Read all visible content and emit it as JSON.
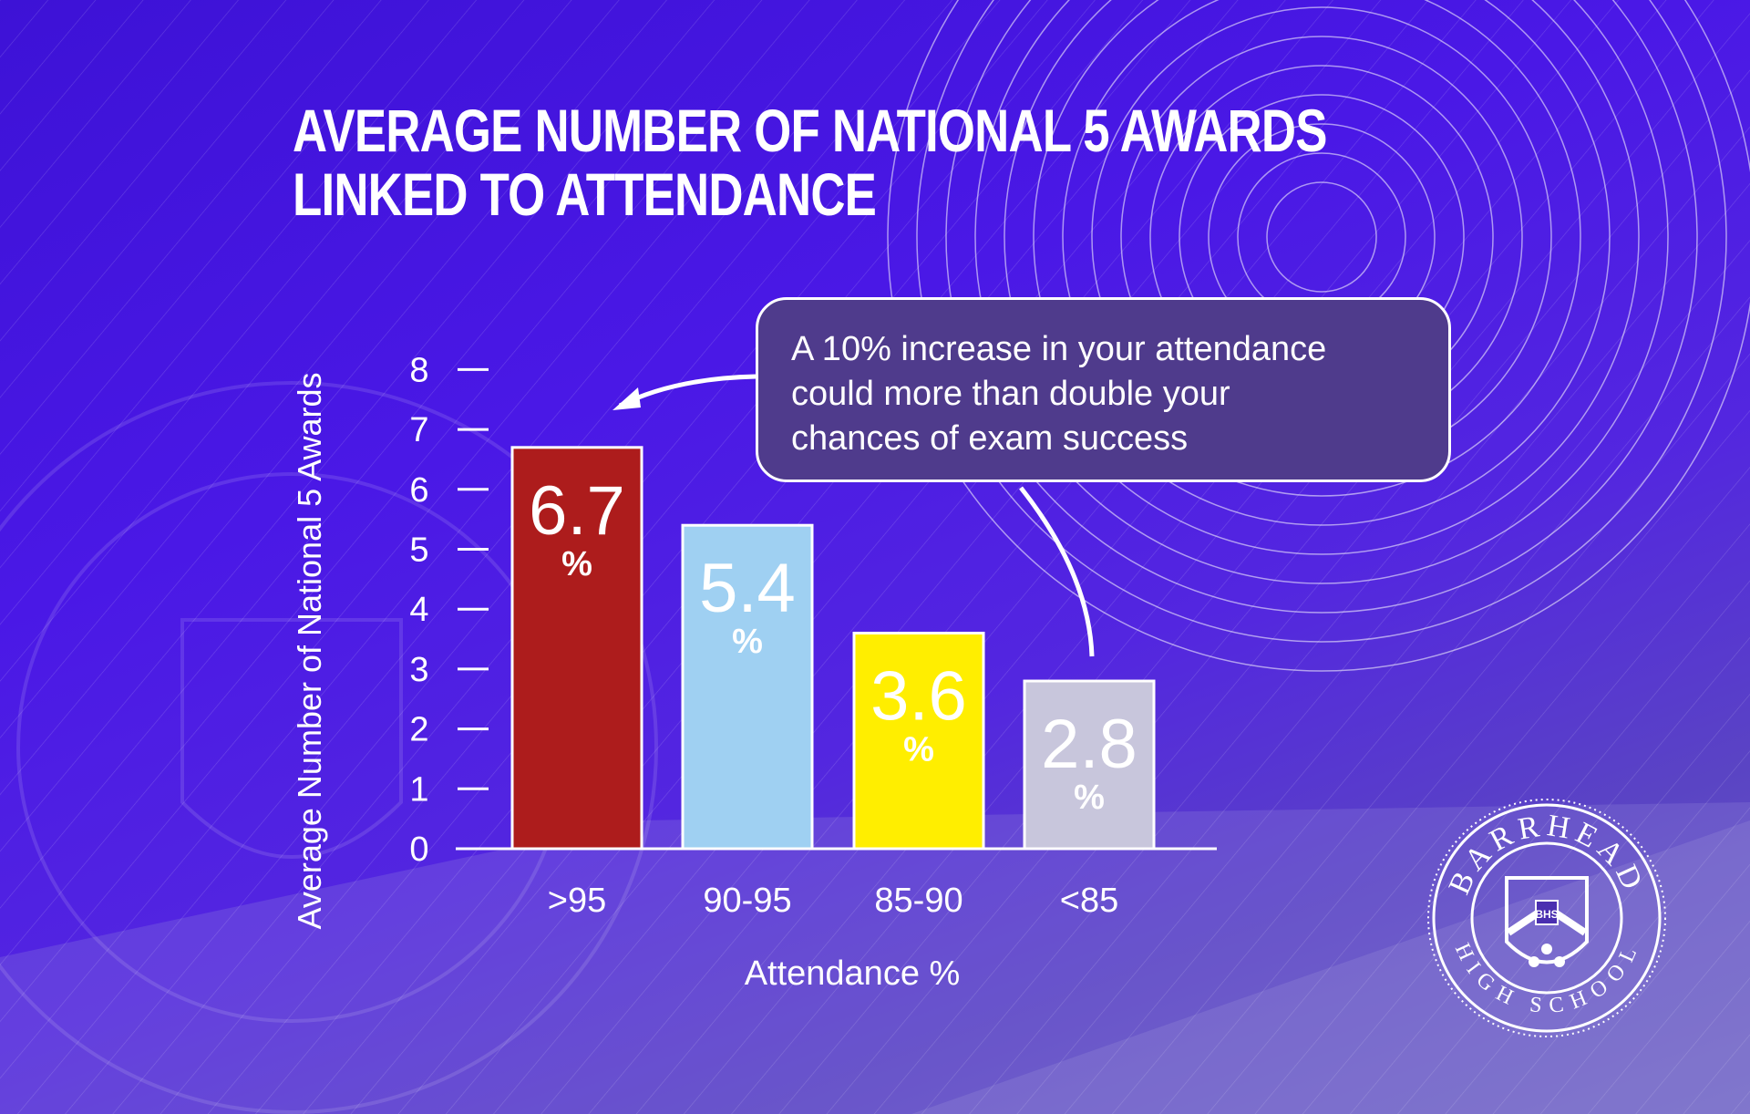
{
  "title": {
    "line1": "AVERAGE NUMBER OF NATIONAL 5 AWARDS",
    "line2": "LINKED TO ATTENDANCE"
  },
  "callout": {
    "lines": [
      "A 10% increase in your attendance",
      "could more than double your",
      "chances of exam success"
    ]
  },
  "logo": {
    "top_text": "BARRHEAD",
    "bottom_text": "HIGH SCHOOL",
    "monogram": "BHS"
  },
  "colors": {
    "bar1": "#ad1c1c",
    "bar2": "#9fd0f2",
    "bar3": "#ffee00",
    "bar4": "#c8c6dc",
    "callout_fill": "#4f3b8c"
  },
  "chart_data": {
    "type": "bar",
    "title": "AVERAGE NUMBER OF NATIONAL 5 AWARDS LINKED TO ATTENDANCE",
    "xlabel": "Attendance %",
    "ylabel": "Average Number of National 5 Awards",
    "categories": [
      ">95",
      "90-95",
      "85-90",
      "<85"
    ],
    "values": [
      6.7,
      5.4,
      3.6,
      2.8
    ],
    "value_labels": [
      "6.7",
      "5.4",
      "3.6",
      "2.8"
    ],
    "value_suffix": "%",
    "yticks": [
      "0",
      "1",
      "2",
      "3",
      "4",
      "5",
      "6",
      "7",
      "8"
    ],
    "ylim": [
      0,
      8
    ],
    "grid": false,
    "annotation": "A 10% increase in your attendance could more than double your chances of exam success"
  }
}
